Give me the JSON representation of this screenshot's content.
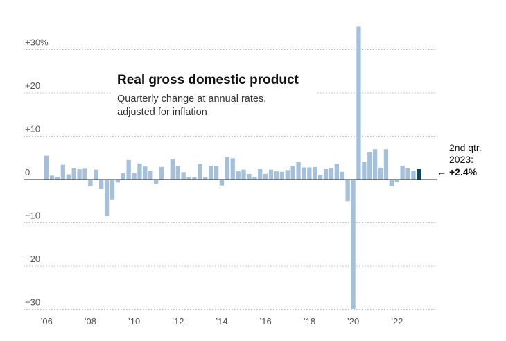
{
  "chart_data": {
    "type": "bar",
    "title": "Real gross domestic product",
    "subtitle_lines": [
      "Quarterly change at annual rates,",
      "adjusted for inflation"
    ],
    "ylim": [
      -30,
      35
    ],
    "y_ticks": [
      {
        "value": 30,
        "label": "+30%"
      },
      {
        "value": 20,
        "label": "+20"
      },
      {
        "value": 10,
        "label": "+10"
      },
      {
        "value": 0,
        "label": "0"
      },
      {
        "value": -10,
        "label": "−10"
      },
      {
        "value": -20,
        "label": "−20"
      },
      {
        "value": -30,
        "label": "−30"
      }
    ],
    "x_ticks": [
      "’06",
      "’08",
      "’10",
      "’12",
      "’14",
      "’16",
      "’18",
      "’20",
      "’22"
    ],
    "x_tick_years": [
      2006,
      2008,
      2010,
      2012,
      2014,
      2016,
      2018,
      2020,
      2022
    ],
    "start_year": 2006,
    "values": [
      5.5,
      0.9,
      0.6,
      3.4,
      1.2,
      2.6,
      2.4,
      2.5,
      -1.6,
      2.3,
      -2.1,
      -8.5,
      -4.6,
      -0.7,
      1.5,
      4.5,
      1.5,
      3.7,
      3.0,
      2.0,
      -1.0,
      2.9,
      -0.1,
      4.7,
      3.2,
      1.7,
      0.5,
      0.5,
      3.6,
      0.5,
      3.2,
      3.1,
      -1.4,
      5.2,
      4.9,
      1.9,
      2.3,
      1.3,
      0.6,
      2.4,
      1.3,
      2.3,
      1.9,
      1.8,
      2.2,
      3.2,
      4.0,
      2.8,
      2.8,
      2.9,
      1.1,
      2.4,
      2.6,
      3.6,
      1.8,
      -5.0,
      -29.9,
      35.3,
      4.0,
      6.3,
      7.0,
      2.7,
      7.0,
      -1.6,
      -0.6,
      3.2,
      2.6,
      2.0,
      2.4
    ],
    "highlight": {
      "label_lines": [
        "2nd qtr.",
        "2023:"
      ],
      "value_label": "+2.4%",
      "arrow": "←"
    },
    "colors": {
      "bar": "#a5c0dc",
      "highlight_bar": "#0b4a63",
      "grid": "#b5b5b5",
      "zero_line": "#222222"
    }
  }
}
